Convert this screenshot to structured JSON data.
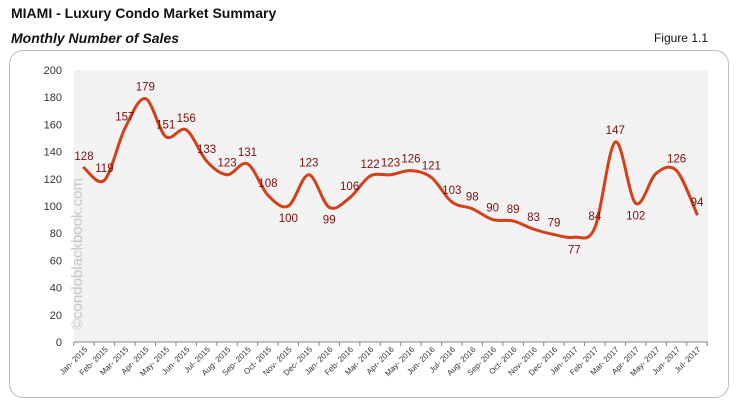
{
  "header": {
    "title": "MIAMI - Luxury Condo Market Summary",
    "subtitle": "Monthly Number of Sales",
    "figure": "Figure 1.1"
  },
  "watermark": "©condoblackbook.com",
  "colors": {
    "line": "#d4401a",
    "labels": "#7a1010",
    "plot_bg": "#f2f2f2"
  },
  "chart_data": {
    "type": "line",
    "title": "Monthly Number of Sales",
    "categories": [
      "Jan- 2015",
      "Feb- 2015",
      "Mar- 2015",
      "Apr- 2015",
      "May- 2015",
      "Jun- 2015",
      "Jul- 2015",
      "Aug- 2015",
      "Sep- 2015",
      "Oct- 2015",
      "Nov- 2015",
      "Dec- 2015",
      "Jan- 2016",
      "Feb- 2016",
      "Mar- 2016",
      "Apr- 2016",
      "May- 2016",
      "Jun- 2016",
      "Jul- 2016",
      "Aug- 2016",
      "Sep- 2016",
      "Oct- 2016",
      "Nov- 2016",
      "Dec- 2016",
      "Jan- 2017",
      "Feb- 2017",
      "Mar- 2017",
      "Apr- 2017",
      "May- 2017",
      "Jun- 2017",
      "Jul- 2017"
    ],
    "values": [
      128,
      119,
      157,
      179,
      151,
      156,
      133,
      123,
      131,
      108,
      100,
      123,
      99,
      106,
      122,
      123,
      126,
      121,
      103,
      98,
      90,
      89,
      83,
      79,
      77,
      84,
      147,
      102,
      124,
      126,
      94
    ],
    "labels": [
      "128",
      "119",
      "157",
      "179",
      "151",
      "156",
      "133",
      "123",
      "131",
      "108",
      "100",
      "123",
      "99",
      "106",
      "122",
      "123",
      "126",
      "121",
      "103",
      "98",
      "90",
      "89",
      "83",
      "79",
      "77",
      "84",
      "147",
      "102",
      null,
      "126",
      "94"
    ],
    "ylim": [
      0,
      200
    ],
    "yticks": [
      0,
      20,
      40,
      60,
      80,
      100,
      120,
      140,
      160,
      180,
      200
    ],
    "grid": false,
    "legend": "none"
  }
}
